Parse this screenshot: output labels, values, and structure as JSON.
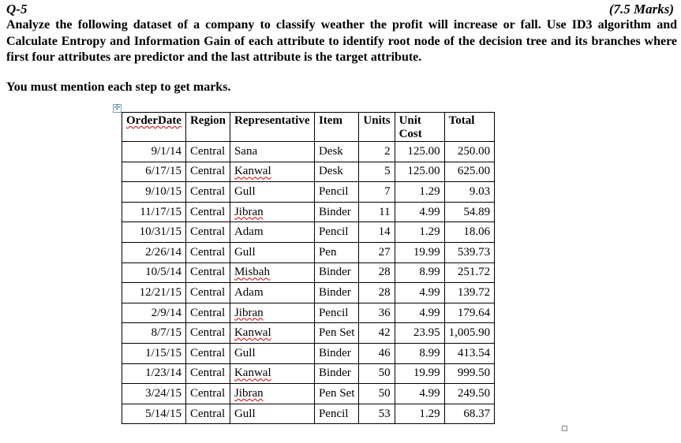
{
  "question": {
    "number": "Q-5",
    "marks": "(7.5 Marks)",
    "instruction": "Analyze the following dataset of a company to classify weather the profit will increase or fall. Use ID3 algorithm and Calculate Entropy and Information Gain of each attribute to identify root node of the decision tree and its branches where first four attributes are predictor and the last attribute is the target attribute.",
    "note": "You must mention each step to get marks."
  },
  "table": {
    "headers": [
      "OrderDate",
      "Region",
      "Representative",
      "Item",
      "Units",
      "Unit Cost",
      "Total"
    ],
    "rows": [
      [
        "9/1/14",
        "Central",
        "Sana",
        "Desk",
        "2",
        "125.00",
        "250.00"
      ],
      [
        "6/17/15",
        "Central",
        "Kanwal",
        "Desk",
        "5",
        "125.00",
        "625.00"
      ],
      [
        "9/10/15",
        "Central",
        "Gull",
        "Pencil",
        "7",
        "1.29",
        "9.03"
      ],
      [
        "11/17/15",
        "Central",
        "Jibran",
        "Binder",
        "11",
        "4.99",
        "54.89"
      ],
      [
        "10/31/15",
        "Central",
        "Adam",
        "Pencil",
        "14",
        "1.29",
        "18.06"
      ],
      [
        "2/26/14",
        "Central",
        "Gull",
        "Pen",
        "27",
        "19.99",
        "539.73"
      ],
      [
        "10/5/14",
        "Central",
        "Misbah",
        "Binder",
        "28",
        "8.99",
        "251.72"
      ],
      [
        "12/21/15",
        "Central",
        "Adam",
        "Binder",
        "28",
        "4.99",
        "139.72"
      ],
      [
        "2/9/14",
        "Central",
        "Jibran",
        "Pencil",
        "36",
        "4.99",
        "179.64"
      ],
      [
        "8/7/15",
        "Central",
        "Kanwal",
        "Pen Set",
        "42",
        "23.95",
        "1,005.90"
      ],
      [
        "1/15/15",
        "Central",
        "Gull",
        "Binder",
        "46",
        "8.99",
        "413.54"
      ],
      [
        "1/23/14",
        "Central",
        "Kanwal",
        "Binder",
        "50",
        "19.99",
        "999.50"
      ],
      [
        "3/24/15",
        "Central",
        "Jibran",
        "Pen Set",
        "50",
        "4.99",
        "249.50"
      ],
      [
        "5/14/15",
        "Central",
        "Gull",
        "Pencil",
        "53",
        "1.29",
        "68.37"
      ]
    ]
  },
  "spellcheck_words": [
    "OrderDate",
    "Kanwal",
    "Jibran",
    "Misbah"
  ],
  "icons": {
    "table_move": "move-handle-icon",
    "table_resize": "resize-handle-icon"
  }
}
